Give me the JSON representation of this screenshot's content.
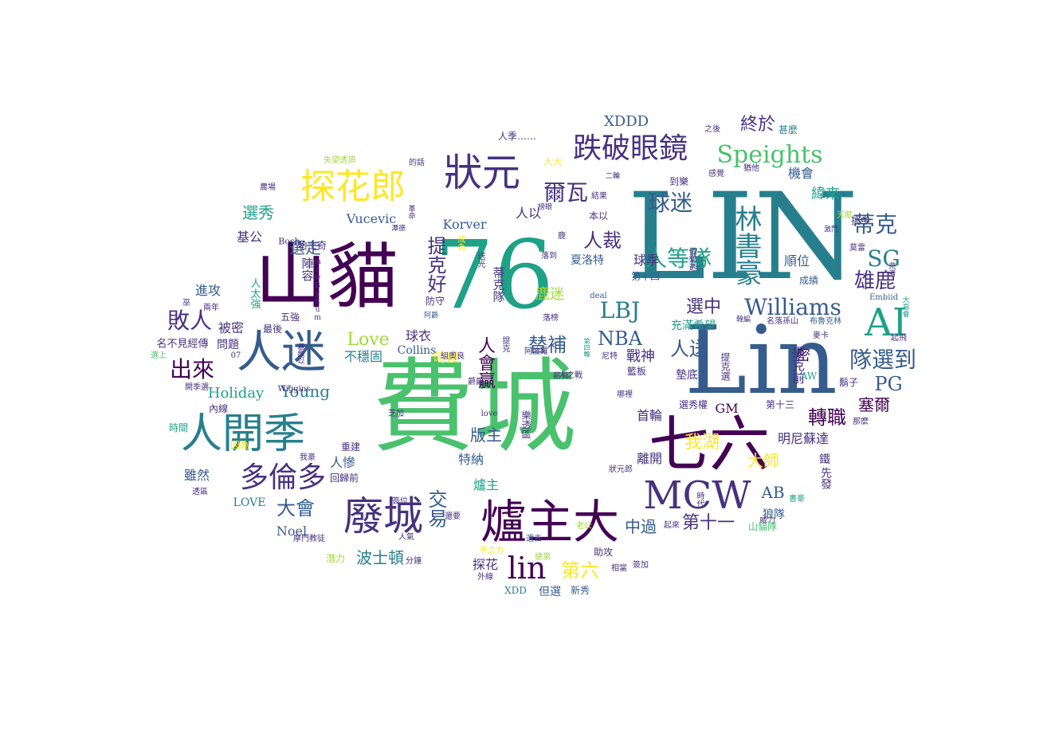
{
  "palette": [
    "#440154",
    "#46327e",
    "#365c8d",
    "#277f8e",
    "#1fa187",
    "#4ac16d",
    "#a0da39",
    "#fde725"
  ],
  "words": {
    "w1": "費城",
    "w2": "LIN",
    "w3": "76",
    "w4": "Lin",
    "w5": "山貓",
    "w6": "七六",
    "w7": "爐主大",
    "w8": "人迷",
    "w9": "廢城",
    "w10": "人開季",
    "w11": "狀元",
    "w12": "MCW",
    "w13": "AI",
    "w14": "探花郎",
    "w15": "跌破眼鏡",
    "w16": "多倫多",
    "w17": "lin",
    "w18": "林書豪",
    "w19": "Speights",
    "w20": "Williams",
    "w21": "敗人",
    "w22": "球迷",
    "w23": "隊選到",
    "w24": "人等隊",
    "w25": "蒂克",
    "w26": "SG",
    "w27": "爾瓦",
    "w28": "雄鹿",
    "w29": "LBJ",
    "w30": "出來",
    "w31": "提克好",
    "w32": "NBA",
    "w33": "替補",
    "w34": "轉職",
    "w35": "交易",
    "w36": "第六",
    "w37": "人裁",
    "w38": "人送",
    "w39": "PG",
    "w40": "大會",
    "w41": "選中",
    "w42": "Love",
    "w43": "我湖",
    "w44": "人會贏",
    "w45": "終於",
    "w46": "版主",
    "w47": "選秀",
    "w48": "選走",
    "w49": "Young",
    "w50": "Holiday",
    "w51": "塞爾",
    "w52": "第十一",
    "w53": "大師",
    "w54": "中過",
    "w55": "波士頓",
    "w56": "AB",
    "w57": "XDDD",
    "w58": "基公",
    "w59": "陣容",
    "w60": "進攻",
    "w61": "被密",
    "w62": "問題",
    "w63": "人以",
    "w64": "機會",
    "w65": "緯來",
    "w66": "順位",
    "w67": "戰神",
    "w68": "時候",
    "w69": "不穩固",
    "w70": "球衣",
    "w71": "鹿迷",
    "w72": "蒂克隊",
    "w73": "夏洛特",
    "w74": "球季",
    "w75": "首輪",
    "w76": "密",
    "w77": "明尼蘇達",
    "w78": "GM",
    "w79": "離開",
    "w80": "人慘",
    "w81": "特納",
    "w82": "爐主",
    "w83": "探花",
    "w84": "但選",
    "w85": "雖然",
    "w86": "Noel",
    "w87": "LOVE",
    "w88": "回歸前",
    "w89": "Korver",
    "w90": "Vucevic",
    "w91": "Collins",
    "w92": "最後",
    "w93": "人季……",
    "w94": "到樂",
    "w95": "挑中",
    "w96": "本以",
    "w97": "第十四",
    "w98": "成績",
    "w99": "人大",
    "w100": "提克前",
    "w101": "充滿希望",
    "w102": "鬍子",
    "w103": "狼隊",
    "w104": "鐵",
    "w105": "先發",
    "w106": "威力",
    "w107": "山貓隊",
    "w108": "潛力",
    "w109": "分鐘",
    "w110": "助攻",
    "w111": "簽加",
    "w112": "相當",
    "w113": "新秀",
    "w114": "XDD",
    "w115": "人太強",
    "w116": "五強",
    "w117": "名不見經傳",
    "w118": "哈士奇",
    "w119": "Bosh",
    "w120": "農場",
    "w121": "失望透頂",
    "w122": "的話",
    "w123": "之後",
    "w124": "甚麼",
    "w125": "感覺",
    "w126": "猶他",
    "w127": "Embiid",
    "w128": "名落孫山",
    "w129": "布魯克林",
    "w130": "起飛",
    "w131": "AW",
    "w132": "開季選",
    "w133": "時間",
    "w134": "內線",
    "w135": "因為",
    "w136": "透區",
    "w137": "摩門教徒",
    "w138": "外線",
    "w139": "手之力",
    "w140": "人之戰",
    "w141": "love",
    "w142": "芝加",
    "w143": "重建",
    "w144": "樂透區",
    "w145": "選秀權",
    "w146": "籃板",
    "w147": "第十三",
    "w148": "提克選",
    "w149": "墊底",
    "w150": "尼特",
    "w151": "阿波羅",
    "w152": "薪資",
    "w153": "哪裡",
    "w154": "那麼",
    "w155": "書豪",
    "w156": "時代",
    "w157": "老公",
    "w158": "選去",
    "w159": "總第",
    "w160": "還要",
    "w161": "人氣",
    "w162": "簽位",
    "w163": "我豪",
    "w164": "Wiggins",
    "w165": "選上",
    "w166": "巫",
    "w167": "兩年",
    "w168": "07",
    "w169": "防守",
    "w170": "組奧良",
    "w171": "爵爵",
    "w172": "Bynum",
    "w173": "mcw",
    "w174": "成為",
    "w175": "送光",
    "w176": "落到",
    "w177": "落榜",
    "w178": "鹿",
    "w179": "deal",
    "w180": "狀元郎",
    "w181": "麥卡",
    "w182": "莫雷",
    "w183": "激鬥",
    "w184": "天賦",
    "w185": "個樂透",
    "w186": "起來",
    "w187": "韓編",
    "w188": "二輪",
    "w189": "結果",
    "w190": "榜眼",
    "w191": "第四輪",
    "w192": "阿爵",
    "w193": "暴龍以",
    "w194": "提克",
    "w195": "大島會",
    "w196": "荒者",
    "w197": "革命",
    "w198": "潭德"
  }
}
